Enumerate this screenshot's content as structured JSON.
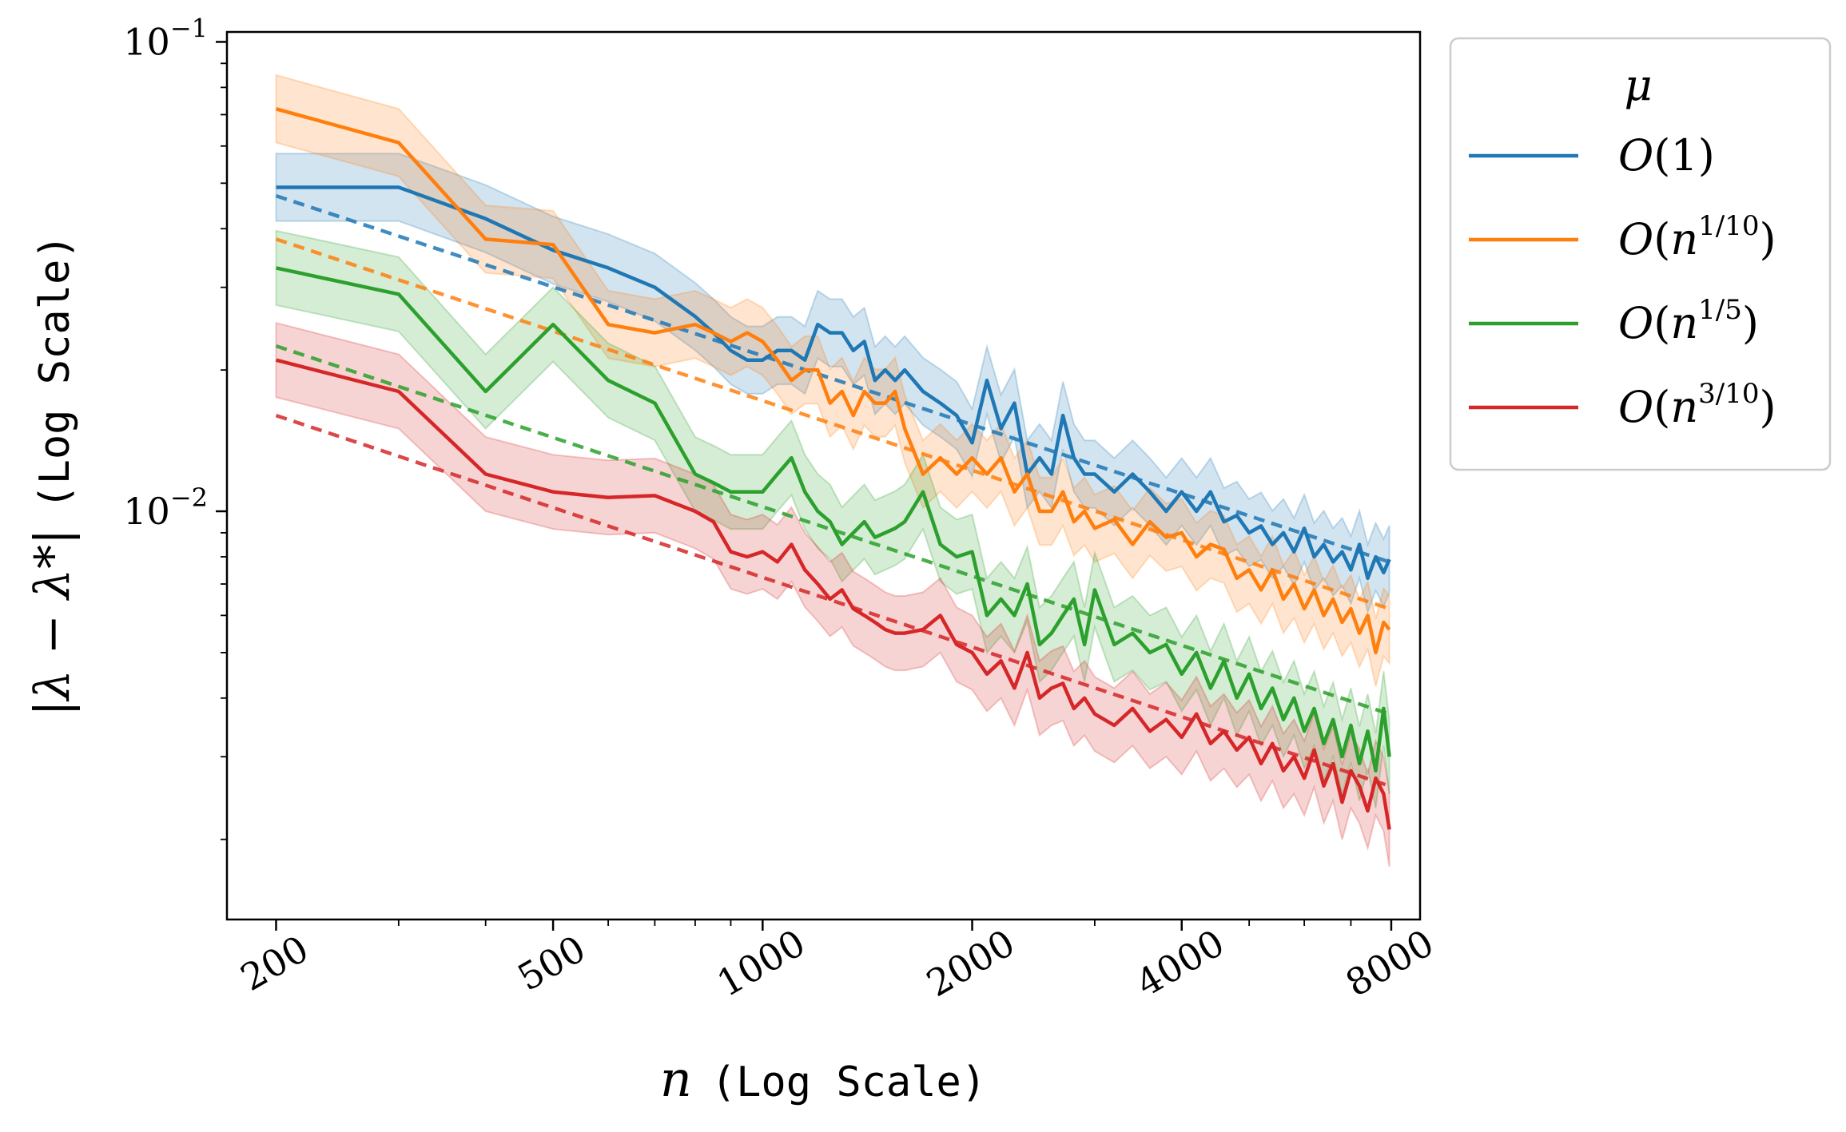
{
  "chart_data": {
    "type": "line",
    "xscale": "log",
    "yscale": "log",
    "xlim": [
      170,
      8800
    ],
    "ylim": [
      0.00135,
      0.105
    ],
    "x_ticks": [
      200,
      500,
      1000,
      2000,
      4000,
      8000
    ],
    "x_tick_labels": [
      "200",
      "500",
      "1000",
      "2000",
      "4000",
      "8000"
    ],
    "y_ticks": [
      0.1,
      0.01
    ],
    "y_tick_labels": [
      {
        "base": "10",
        "exp": "−1"
      },
      {
        "base": "10",
        "exp": "−2"
      }
    ],
    "xlabel": {
      "math": "n",
      "text": "(Log Scale)"
    },
    "ylabel": {
      "math": "|λ − λ*|",
      "text": "(Log Scale)"
    },
    "legend": {
      "title": "μ",
      "position": "outside-right-top"
    },
    "series": [
      {
        "name": "O(1)",
        "legend_label": {
          "pre": "O(",
          "base": "1",
          "exp": "",
          "post": ")"
        },
        "color": "#1f77b4",
        "x": [
          200,
          300,
          400,
          500,
          600,
          700,
          800,
          850,
          900,
          950,
          1000,
          1050,
          1100,
          1150,
          1200,
          1250,
          1300,
          1350,
          1400,
          1450,
          1500,
          1550,
          1600,
          1700,
          1800,
          1900,
          2000,
          2100,
          2200,
          2300,
          2400,
          2500,
          2600,
          2700,
          2800,
          2900,
          3000,
          3200,
          3400,
          3600,
          3800,
          4000,
          4200,
          4400,
          4600,
          4800,
          5000,
          5200,
          5400,
          5600,
          5800,
          6000,
          6200,
          6400,
          6600,
          6800,
          7000,
          7200,
          7400,
          7600,
          7800,
          7950
        ],
        "y": [
          0.049,
          0.049,
          0.042,
          0.036,
          0.033,
          0.03,
          0.026,
          0.024,
          0.022,
          0.021,
          0.021,
          0.022,
          0.022,
          0.021,
          0.025,
          0.024,
          0.024,
          0.022,
          0.023,
          0.019,
          0.02,
          0.019,
          0.02,
          0.018,
          0.017,
          0.016,
          0.014,
          0.019,
          0.015,
          0.017,
          0.012,
          0.013,
          0.012,
          0.016,
          0.013,
          0.012,
          0.012,
          0.011,
          0.012,
          0.011,
          0.01,
          0.011,
          0.01,
          0.011,
          0.0095,
          0.0098,
          0.009,
          0.0093,
          0.0085,
          0.009,
          0.0082,
          0.0092,
          0.008,
          0.0085,
          0.0078,
          0.0082,
          0.0075,
          0.0085,
          0.0072,
          0.008,
          0.0074,
          0.0079
        ],
        "err": 0.18,
        "fit": [
          [
            200,
            0.047
          ],
          [
            7950,
            0.0078
          ]
        ]
      },
      {
        "name": "O(n^{1/10})",
        "legend_label": {
          "pre": "O(",
          "base": "n",
          "exp": "1/10",
          "post": ")"
        },
        "color": "#ff7f0e",
        "x": [
          200,
          300,
          400,
          500,
          600,
          700,
          800,
          850,
          900,
          950,
          1000,
          1050,
          1100,
          1150,
          1200,
          1250,
          1300,
          1350,
          1400,
          1450,
          1500,
          1550,
          1600,
          1700,
          1800,
          1900,
          2000,
          2100,
          2200,
          2300,
          2400,
          2500,
          2600,
          2700,
          2800,
          2900,
          3000,
          3200,
          3400,
          3600,
          3800,
          4000,
          4200,
          4400,
          4600,
          4800,
          5000,
          5200,
          5400,
          5600,
          5800,
          6000,
          6200,
          6400,
          6600,
          6800,
          7000,
          7200,
          7400,
          7600,
          7800,
          7950
        ],
        "y": [
          0.072,
          0.061,
          0.038,
          0.037,
          0.025,
          0.024,
          0.025,
          0.024,
          0.023,
          0.024,
          0.023,
          0.021,
          0.019,
          0.02,
          0.02,
          0.017,
          0.018,
          0.016,
          0.018,
          0.017,
          0.017,
          0.018,
          0.015,
          0.012,
          0.013,
          0.012,
          0.013,
          0.012,
          0.013,
          0.011,
          0.012,
          0.01,
          0.01,
          0.011,
          0.0095,
          0.01,
          0.0092,
          0.0096,
          0.0085,
          0.0095,
          0.0088,
          0.009,
          0.008,
          0.0085,
          0.0083,
          0.0072,
          0.0075,
          0.0068,
          0.0075,
          0.0065,
          0.007,
          0.0062,
          0.0068,
          0.006,
          0.0065,
          0.0058,
          0.0062,
          0.0055,
          0.006,
          0.005,
          0.0058,
          0.0056
        ],
        "err": 0.18,
        "fit": [
          [
            200,
            0.038
          ],
          [
            7950,
            0.0062
          ]
        ]
      },
      {
        "name": "O(n^{1/5})",
        "legend_label": {
          "pre": "O(",
          "base": "n",
          "exp": "1/5",
          "post": ")"
        },
        "color": "#2ca02c",
        "x": [
          200,
          300,
          400,
          500,
          600,
          700,
          800,
          850,
          900,
          950,
          1000,
          1050,
          1100,
          1150,
          1200,
          1250,
          1300,
          1350,
          1400,
          1450,
          1500,
          1550,
          1600,
          1700,
          1800,
          1900,
          2000,
          2100,
          2200,
          2300,
          2400,
          2500,
          2600,
          2700,
          2800,
          2900,
          3000,
          3200,
          3400,
          3600,
          3800,
          4000,
          4200,
          4400,
          4600,
          4800,
          5000,
          5200,
          5400,
          5600,
          5800,
          6000,
          6200,
          6400,
          6600,
          6800,
          7000,
          7200,
          7400,
          7600,
          7800,
          7950
        ],
        "y": [
          0.033,
          0.029,
          0.018,
          0.025,
          0.019,
          0.017,
          0.012,
          0.0115,
          0.011,
          0.011,
          0.011,
          0.012,
          0.013,
          0.011,
          0.01,
          0.0095,
          0.0085,
          0.009,
          0.0095,
          0.0088,
          0.009,
          0.0092,
          0.0095,
          0.011,
          0.0085,
          0.008,
          0.0082,
          0.006,
          0.0065,
          0.006,
          0.007,
          0.0052,
          0.0055,
          0.006,
          0.0065,
          0.0052,
          0.0068,
          0.0052,
          0.0055,
          0.005,
          0.0052,
          0.0045,
          0.005,
          0.0042,
          0.0048,
          0.004,
          0.0045,
          0.0038,
          0.0042,
          0.0036,
          0.004,
          0.0034,
          0.0038,
          0.0032,
          0.0036,
          0.003,
          0.0035,
          0.0029,
          0.0034,
          0.0028,
          0.0038,
          0.003
        ],
        "err": 0.2,
        "fit": [
          [
            200,
            0.0225
          ],
          [
            7950,
            0.0037
          ]
        ]
      },
      {
        "name": "O(n^{3/10})",
        "legend_label": {
          "pre": "O(",
          "base": "n",
          "exp": "3/10",
          "post": ")"
        },
        "color": "#d62728",
        "x": [
          200,
          300,
          400,
          500,
          600,
          700,
          800,
          850,
          900,
          950,
          1000,
          1050,
          1100,
          1150,
          1200,
          1250,
          1300,
          1350,
          1400,
          1450,
          1500,
          1550,
          1600,
          1700,
          1800,
          1900,
          2000,
          2100,
          2200,
          2300,
          2400,
          2500,
          2600,
          2700,
          2800,
          2900,
          3000,
          3200,
          3400,
          3600,
          3800,
          4000,
          4200,
          4400,
          4600,
          4800,
          5000,
          5200,
          5400,
          5600,
          5800,
          6000,
          6200,
          6400,
          6600,
          6800,
          7000,
          7200,
          7400,
          7600,
          7800,
          7950
        ],
        "y": [
          0.021,
          0.018,
          0.012,
          0.011,
          0.0107,
          0.0108,
          0.01,
          0.0095,
          0.0082,
          0.008,
          0.0082,
          0.0078,
          0.0085,
          0.0075,
          0.007,
          0.0065,
          0.0068,
          0.0062,
          0.006,
          0.0058,
          0.0056,
          0.0055,
          0.0055,
          0.0056,
          0.006,
          0.0052,
          0.005,
          0.0045,
          0.0048,
          0.0042,
          0.005,
          0.004,
          0.0042,
          0.0043,
          0.0038,
          0.004,
          0.0037,
          0.0035,
          0.0038,
          0.0034,
          0.0036,
          0.0033,
          0.0037,
          0.0032,
          0.0034,
          0.0031,
          0.0033,
          0.0029,
          0.0032,
          0.0028,
          0.003,
          0.0027,
          0.0031,
          0.0026,
          0.0029,
          0.0024,
          0.0028,
          0.0026,
          0.0023,
          0.0027,
          0.0025,
          0.0021
        ],
        "err": 0.2,
        "fit": [
          [
            200,
            0.016
          ],
          [
            7950,
            0.0026
          ]
        ]
      }
    ]
  }
}
